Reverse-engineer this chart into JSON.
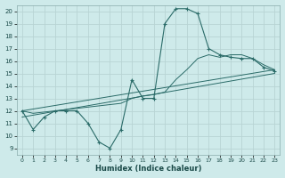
{
  "xlabel": "Humidex (Indice chaleur)",
  "bg_color": "#ceeaea",
  "grid_color": "#b8d4d4",
  "line_color": "#2a6b68",
  "xlim": [
    -0.5,
    23.5
  ],
  "ylim": [
    8.5,
    20.5
  ],
  "xticks": [
    0,
    1,
    2,
    3,
    4,
    5,
    6,
    7,
    8,
    9,
    10,
    11,
    12,
    13,
    14,
    15,
    16,
    17,
    18,
    19,
    20,
    21,
    22,
    23
  ],
  "yticks": [
    9,
    10,
    11,
    12,
    13,
    14,
    15,
    16,
    17,
    18,
    19,
    20
  ],
  "main_line": {
    "x": [
      0,
      1,
      2,
      3,
      4,
      5,
      6,
      7,
      8,
      9,
      10,
      11,
      12,
      13,
      14,
      15,
      16,
      17,
      18,
      19,
      20,
      21,
      22,
      23
    ],
    "y": [
      12.0,
      10.5,
      11.5,
      12.0,
      12.0,
      12.0,
      11.0,
      9.5,
      9.0,
      10.5,
      14.5,
      13.0,
      13.0,
      19.0,
      20.2,
      20.2,
      19.8,
      17.0,
      16.5,
      16.3,
      16.2,
      16.2,
      15.5,
      15.2
    ]
  },
  "line2": {
    "x": [
      0,
      1,
      2,
      3,
      4,
      5,
      6,
      7,
      8,
      9,
      10,
      11,
      12,
      13,
      14,
      15,
      16,
      17,
      18,
      19,
      20,
      21,
      22,
      23
    ],
    "y": [
      12.0,
      11.8,
      11.9,
      12.0,
      12.1,
      12.2,
      12.3,
      12.4,
      12.5,
      12.6,
      13.0,
      13.2,
      13.3,
      13.5,
      14.5,
      15.3,
      16.2,
      16.5,
      16.3,
      16.5,
      16.5,
      16.2,
      15.7,
      15.3
    ]
  },
  "line3": {
    "x": [
      0,
      23
    ],
    "y": [
      12.0,
      15.3
    ]
  },
  "line4": {
    "x": [
      0,
      23
    ],
    "y": [
      11.5,
      15.0
    ]
  }
}
